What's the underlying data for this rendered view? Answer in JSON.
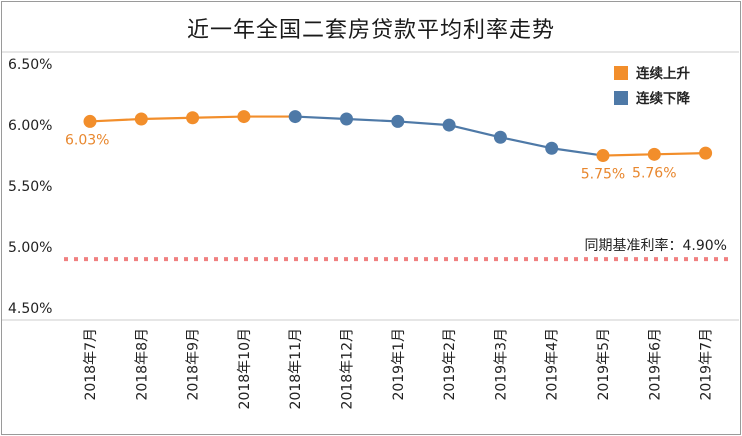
{
  "chart_data": {
    "type": "line",
    "title": "近一年全国二套房贷款平均利率走势",
    "categories": [
      "2018年7月",
      "2018年8月",
      "2018年9月",
      "2018年10月",
      "2018年11月",
      "2018年12月",
      "2019年1月",
      "2019年2月",
      "2019年3月",
      "2019年4月",
      "2019年5月",
      "2019年6月",
      "2019年7月"
    ],
    "values": [
      6.03,
      6.05,
      6.06,
      6.07,
      6.07,
      6.05,
      6.03,
      6.0,
      5.9,
      5.81,
      5.75,
      5.76,
      5.77
    ],
    "segment_trend": [
      "up",
      "up",
      "up",
      "up",
      "down",
      "down",
      "down",
      "down",
      "down",
      "down",
      "up",
      "up"
    ],
    "point_trend": [
      "up",
      "up",
      "up",
      "up",
      "down",
      "down",
      "down",
      "down",
      "down",
      "down",
      "up",
      "up",
      "up"
    ],
    "ylim": [
      4.4,
      6.6
    ],
    "yticks": [
      {
        "value": 6.5,
        "label": "6.50%"
      },
      {
        "value": 6.0,
        "label": "6.00%"
      },
      {
        "value": 5.5,
        "label": "5.50%"
      },
      {
        "value": 5.0,
        "label": "5.00%"
      },
      {
        "value": 4.5,
        "label": "4.50%"
      }
    ],
    "data_labels": [
      {
        "index": 0,
        "text": "6.03%"
      },
      {
        "index": 10,
        "text": "5.75%"
      },
      {
        "index": 11,
        "text": "5.76%"
      }
    ],
    "legend": {
      "position": "top-right",
      "items": [
        {
          "key": "up",
          "label": "连续上升",
          "color": "#F28E2B"
        },
        {
          "key": "down",
          "label": "连续下降",
          "color": "#4E79A7"
        }
      ]
    },
    "reference_line": {
      "value": 4.9,
      "label": "同期基准利率：4.90%",
      "color": "#F08080"
    },
    "colors": {
      "up": "#F28E2B",
      "down": "#4E79A7",
      "grid": "#cccccc",
      "label": "#E8872E"
    },
    "grid": true
  }
}
